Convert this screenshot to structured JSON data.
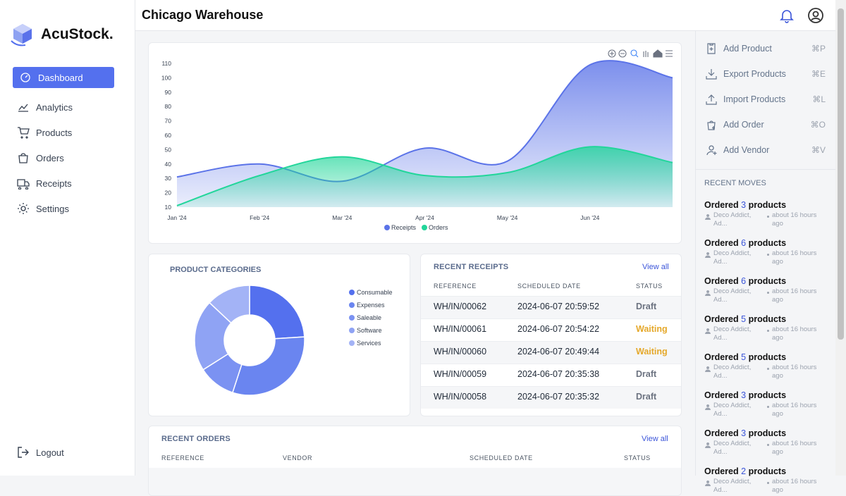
{
  "sidebar": {
    "brand": "AcuStock.",
    "nav": [
      {
        "label": "Dashboard",
        "active": true
      },
      {
        "label": "Analytics",
        "active": false
      },
      {
        "label": "Products",
        "active": false
      },
      {
        "label": "Orders",
        "active": false
      },
      {
        "label": "Receipts",
        "active": false
      },
      {
        "label": "Settings",
        "active": false
      }
    ],
    "logout": "Logout"
  },
  "header": {
    "title": "Chicago Warehouse"
  },
  "chart_data": [
    {
      "type": "area",
      "categories": [
        "Jan '24",
        "Feb '24",
        "Mar '24",
        "Apr '24",
        "May '24",
        "Jun '24",
        null
      ],
      "series": [
        {
          "name": "Receipts",
          "color": "#5b73e8",
          "values": [
            31,
            40,
            28,
            51,
            42,
            109,
            100
          ]
        },
        {
          "name": "Orders",
          "color": "#22d69a",
          "values": [
            11,
            32,
            45,
            32,
            34,
            52,
            41
          ]
        }
      ],
      "ylim": [
        10,
        110
      ],
      "yticks": [
        10,
        20,
        30,
        40,
        50,
        60,
        70,
        80,
        90,
        100,
        110
      ],
      "grid": false,
      "legend": "bottom"
    },
    {
      "type": "donut",
      "title": "PRODUCT CATEGORIES",
      "categories": [
        "Consumable",
        "Expenses",
        "Saleable",
        "Software",
        "Services"
      ],
      "values": [
        24,
        31,
        11,
        21,
        13
      ],
      "colors": [
        "#5470ee",
        "#6a85f0",
        "#7b92f2",
        "#8fa3f4",
        "#a3b3f6"
      ],
      "legend": "right"
    }
  ],
  "recent_receipts": {
    "title": "RECENT RECEIPTS",
    "view_all": "View all",
    "columns": [
      "REFERENCE",
      "SCHEDULED DATE",
      "STATUS"
    ],
    "rows": [
      {
        "reference": "WH/IN/00062",
        "scheduled_date": "2024-06-07 20:59:52",
        "status": "Draft",
        "status_color": "#6b7280"
      },
      {
        "reference": "WH/IN/00061",
        "scheduled_date": "2024-06-07 20:54:22",
        "status": "Waiting",
        "status_color": "#e5a82a"
      },
      {
        "reference": "WH/IN/00060",
        "scheduled_date": "2024-06-07 20:49:44",
        "status": "Waiting",
        "status_color": "#e5a82a"
      },
      {
        "reference": "WH/IN/00059",
        "scheduled_date": "2024-06-07 20:35:38",
        "status": "Draft",
        "status_color": "#6b7280"
      },
      {
        "reference": "WH/IN/00058",
        "scheduled_date": "2024-06-07 20:35:32",
        "status": "Draft",
        "status_color": "#6b7280"
      }
    ]
  },
  "recent_orders": {
    "title": "RECENT ORDERS",
    "view_all": "View all",
    "columns": [
      "REFERENCE",
      "VENDOR",
      "SCHEDULED DATE",
      "STATUS"
    ]
  },
  "quick_actions": [
    {
      "label": "Add Product",
      "shortcut": "⌘P"
    },
    {
      "label": "Export Products",
      "shortcut": "⌘E"
    },
    {
      "label": "Import Products",
      "shortcut": "⌘L"
    },
    {
      "label": "Add Order",
      "shortcut": "⌘O"
    },
    {
      "label": "Add Vendor",
      "shortcut": "⌘V"
    }
  ],
  "recent_moves": {
    "title": "RECENT MOVES",
    "items": [
      {
        "prefix": "Ordered",
        "count": 3,
        "suffix": "products",
        "vendor": "Deco Addict, Ad...",
        "time": "about 16 hours ago"
      },
      {
        "prefix": "Ordered",
        "count": 6,
        "suffix": "products",
        "vendor": "Deco Addict, Ad...",
        "time": "about 16 hours ago"
      },
      {
        "prefix": "Ordered",
        "count": 6,
        "suffix": "products",
        "vendor": "Deco Addict, Ad...",
        "time": "about 16 hours ago"
      },
      {
        "prefix": "Ordered",
        "count": 5,
        "suffix": "products",
        "vendor": "Deco Addict, Ad...",
        "time": "about 16 hours ago"
      },
      {
        "prefix": "Ordered",
        "count": 5,
        "suffix": "products",
        "vendor": "Deco Addict, Ad...",
        "time": "about 16 hours ago"
      },
      {
        "prefix": "Ordered",
        "count": 3,
        "suffix": "products",
        "vendor": "Deco Addict, Ad...",
        "time": "about 16 hours ago"
      },
      {
        "prefix": "Ordered",
        "count": 3,
        "suffix": "products",
        "vendor": "Deco Addict, Ad...",
        "time": "about 16 hours ago"
      },
      {
        "prefix": "Ordered",
        "count": 2,
        "suffix": "products",
        "vendor": "Deco Addict, Ad...",
        "time": "about 16 hours ago"
      }
    ]
  }
}
